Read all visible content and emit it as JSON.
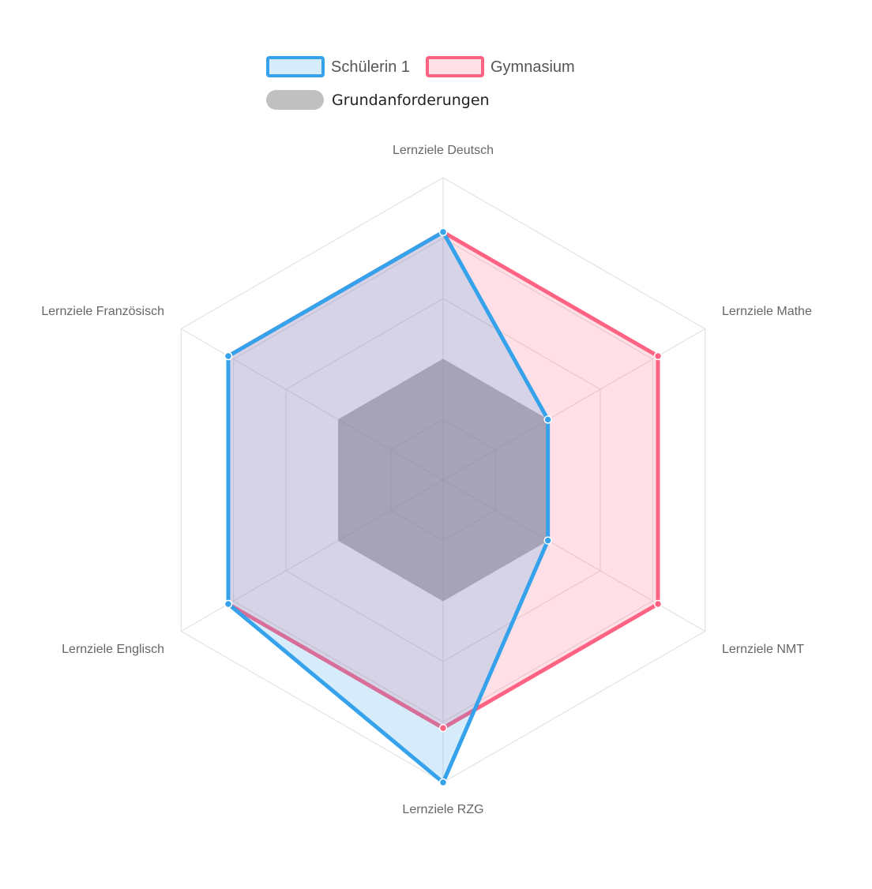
{
  "chart_data": {
    "type": "radar",
    "axes": [
      "Lernziele Deutsch",
      "Lernziele Mathe",
      "Lernziele NMT",
      "Lernziele RZG",
      "Lernziele Englisch",
      "Lernziele Französisch"
    ],
    "r_range": [
      0,
      5
    ],
    "tick_rings": [
      1,
      2,
      3,
      4,
      5
    ],
    "grid": true,
    "legend_position": "top-center",
    "series": [
      {
        "name": "Schülerin 1",
        "values": [
          4.1,
          2.0,
          2.0,
          5.0,
          4.1,
          4.1
        ],
        "stroke": "#36a2eb",
        "fill": "rgba(54,162,235,0.2)"
      },
      {
        "name": "Gymnasium",
        "values": [
          4.1,
          4.1,
          4.1,
          4.1,
          4.1,
          4.1
        ],
        "stroke": "#ff6384",
        "fill": "rgba(255,99,132,0.2)"
      },
      {
        "name": "Grundanforderungen",
        "values": [
          2.0,
          2.0,
          2.0,
          2.0,
          2.0,
          2.0
        ],
        "stroke": "#a9a9a9",
        "fill": "rgba(120,120,120,0.55)"
      }
    ]
  }
}
